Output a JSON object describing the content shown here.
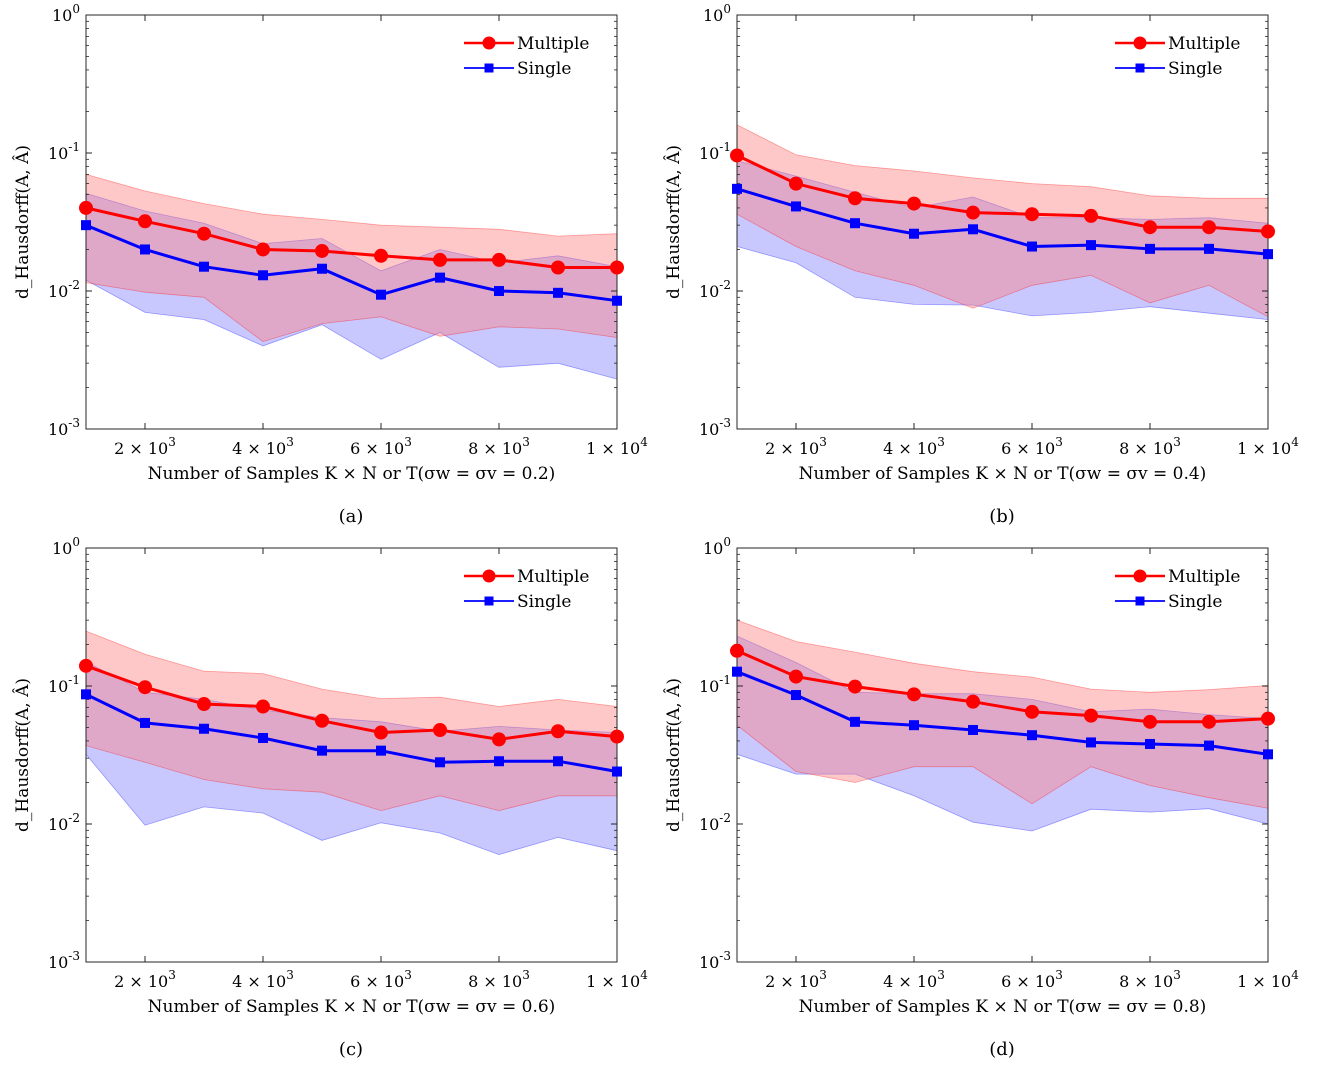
{
  "figure": {
    "colors": {
      "multiple": "#ff0000",
      "single": "#0000ff",
      "multiple_band": "#ff7b7b",
      "single_band": "#7b7bff"
    }
  },
  "chart_data": [
    {
      "panel": "(a)",
      "type": "line",
      "scale": "log-y",
      "xlabel": "Number of Samples K × N or T(σw = σv = 0.2)",
      "ylabel": "d_Hausdorff(A, Â)",
      "xlim": [
        1000,
        10000
      ],
      "ylim": [
        0.001,
        1
      ],
      "x_ticks": [
        2000,
        4000,
        6000,
        8000,
        10000
      ],
      "x_tick_labels": [
        "2 × 10^3",
        "4 × 10^3",
        "6 × 10^3",
        "8 × 10^3",
        "1 × 10^4"
      ],
      "y_ticks": [
        0.001,
        0.01,
        0.1,
        1
      ],
      "y_tick_labels": [
        "10^-3",
        "10^-2",
        "10^-1",
        "10^0"
      ],
      "legend_position": "top-right",
      "x": [
        1000,
        2000,
        3000,
        4000,
        5000,
        6000,
        7000,
        8000,
        9000,
        10000
      ],
      "series": [
        {
          "name": "Multiple",
          "marker": "circle",
          "values": [
            0.04,
            0.032,
            0.026,
            0.02,
            0.0195,
            0.018,
            0.0168,
            0.0168,
            0.0148,
            0.0148
          ],
          "upper": [
            0.07,
            0.053,
            0.043,
            0.036,
            0.033,
            0.03,
            0.029,
            0.028,
            0.025,
            0.026
          ],
          "lower": [
            0.0115,
            0.0098,
            0.009,
            0.0043,
            0.0058,
            0.0065,
            0.0047,
            0.0055,
            0.0053,
            0.0046
          ]
        },
        {
          "name": "Single",
          "marker": "square",
          "values": [
            0.03,
            0.02,
            0.015,
            0.013,
            0.0145,
            0.0094,
            0.0125,
            0.01,
            0.0097,
            0.0085
          ],
          "upper": [
            0.051,
            0.038,
            0.031,
            0.022,
            0.024,
            0.014,
            0.02,
            0.016,
            0.018,
            0.015
          ],
          "lower": [
            0.012,
            0.007,
            0.0062,
            0.004,
            0.0057,
            0.0032,
            0.005,
            0.0028,
            0.003,
            0.0023
          ]
        }
      ]
    },
    {
      "panel": "(b)",
      "type": "line",
      "scale": "log-y",
      "xlabel": "Number of Samples K × N or T(σw = σv = 0.4)",
      "ylabel": "d_Hausdorff(A, Â)",
      "xlim": [
        1000,
        10000
      ],
      "ylim": [
        0.001,
        1
      ],
      "x_ticks": [
        2000,
        4000,
        6000,
        8000,
        10000
      ],
      "x_tick_labels": [
        "2 × 10^3",
        "4 × 10^3",
        "6 × 10^3",
        "8 × 10^3",
        "1 × 10^4"
      ],
      "y_ticks": [
        0.001,
        0.01,
        0.1,
        1
      ],
      "y_tick_labels": [
        "10^-3",
        "10^-2",
        "10^-1",
        "10^0"
      ],
      "legend_position": "top-right",
      "x": [
        1000,
        2000,
        3000,
        4000,
        5000,
        6000,
        7000,
        8000,
        9000,
        10000
      ],
      "series": [
        {
          "name": "Multiple",
          "marker": "circle",
          "values": [
            0.096,
            0.06,
            0.047,
            0.043,
            0.037,
            0.036,
            0.035,
            0.029,
            0.029,
            0.027
          ],
          "upper": [
            0.16,
            0.097,
            0.081,
            0.074,
            0.066,
            0.06,
            0.057,
            0.049,
            0.047,
            0.047
          ],
          "lower": [
            0.036,
            0.021,
            0.014,
            0.011,
            0.0075,
            0.011,
            0.013,
            0.0082,
            0.011,
            0.0065
          ]
        },
        {
          "name": "Single",
          "marker": "square",
          "values": [
            0.055,
            0.041,
            0.031,
            0.026,
            0.028,
            0.021,
            0.0215,
            0.0202,
            0.0202,
            0.0185
          ],
          "upper": [
            0.088,
            0.068,
            0.052,
            0.04,
            0.048,
            0.034,
            0.034,
            0.033,
            0.034,
            0.031
          ],
          "lower": [
            0.021,
            0.016,
            0.009,
            0.008,
            0.0079,
            0.0066,
            0.007,
            0.0077,
            0.0069,
            0.0062
          ]
        }
      ]
    },
    {
      "panel": "(c)",
      "type": "line",
      "scale": "log-y",
      "xlabel": "Number of Samples K × N or T(σw = σv = 0.6)",
      "ylabel": "d_Hausdorff(A, Â)",
      "xlim": [
        1000,
        10000
      ],
      "ylim": [
        0.001,
        1
      ],
      "x_ticks": [
        2000,
        4000,
        6000,
        8000,
        10000
      ],
      "x_tick_labels": [
        "2 × 10^3",
        "4 × 10^3",
        "6 × 10^3",
        "8 × 10^3",
        "1 × 10^4"
      ],
      "y_ticks": [
        0.001,
        0.01,
        0.1,
        1
      ],
      "y_tick_labels": [
        "10^-3",
        "10^-2",
        "10^-1",
        "10^0"
      ],
      "legend_position": "top-right",
      "x": [
        1000,
        2000,
        3000,
        4000,
        5000,
        6000,
        7000,
        8000,
        9000,
        10000
      ],
      "series": [
        {
          "name": "Multiple",
          "marker": "circle",
          "values": [
            0.14,
            0.098,
            0.074,
            0.071,
            0.056,
            0.046,
            0.048,
            0.041,
            0.047,
            0.043
          ],
          "upper": [
            0.25,
            0.17,
            0.128,
            0.123,
            0.095,
            0.081,
            0.083,
            0.071,
            0.08,
            0.071
          ],
          "lower": [
            0.037,
            0.028,
            0.021,
            0.018,
            0.017,
            0.0125,
            0.016,
            0.0125,
            0.016,
            0.016
          ]
        },
        {
          "name": "Single",
          "marker": "square",
          "values": [
            0.087,
            0.054,
            0.049,
            0.042,
            0.034,
            0.034,
            0.028,
            0.0285,
            0.0285,
            0.024
          ],
          "upper": [
            0.15,
            0.09,
            0.08,
            0.067,
            0.059,
            0.055,
            0.047,
            0.051,
            0.048,
            0.046
          ],
          "lower": [
            0.032,
            0.0098,
            0.0133,
            0.012,
            0.0076,
            0.0102,
            0.0086,
            0.006,
            0.008,
            0.0064
          ]
        }
      ]
    },
    {
      "panel": "(d)",
      "type": "line",
      "scale": "log-y",
      "xlabel": "Number of Samples K × N or T(σw = σv = 0.8)",
      "ylabel": "d_Hausdorff(A, Â)",
      "xlim": [
        1000,
        10000
      ],
      "ylim": [
        0.001,
        1
      ],
      "x_ticks": [
        2000,
        4000,
        6000,
        8000,
        10000
      ],
      "x_tick_labels": [
        "2 × 10^3",
        "4 × 10^3",
        "6 × 10^3",
        "8 × 10^3",
        "1 × 10^4"
      ],
      "y_ticks": [
        0.001,
        0.01,
        0.1,
        1
      ],
      "y_tick_labels": [
        "10^-3",
        "10^-2",
        "10^-1",
        "10^0"
      ],
      "legend_position": "top-right",
      "x": [
        1000,
        2000,
        3000,
        4000,
        5000,
        6000,
        7000,
        8000,
        9000,
        10000
      ],
      "series": [
        {
          "name": "Multiple",
          "marker": "circle",
          "values": [
            0.18,
            0.117,
            0.099,
            0.087,
            0.077,
            0.065,
            0.061,
            0.055,
            0.055,
            0.058
          ],
          "upper": [
            0.3,
            0.21,
            0.176,
            0.146,
            0.127,
            0.116,
            0.095,
            0.09,
            0.094,
            0.101
          ],
          "lower": [
            0.052,
            0.024,
            0.02,
            0.026,
            0.026,
            0.014,
            0.026,
            0.019,
            0.0155,
            0.013
          ]
        },
        {
          "name": "Single",
          "marker": "square",
          "values": [
            0.127,
            0.086,
            0.055,
            0.052,
            0.048,
            0.044,
            0.039,
            0.038,
            0.037,
            0.032
          ],
          "upper": [
            0.23,
            0.148,
            0.09,
            0.088,
            0.088,
            0.08,
            0.065,
            0.068,
            0.062,
            0.058
          ],
          "lower": [
            0.032,
            0.023,
            0.023,
            0.016,
            0.0103,
            0.0089,
            0.0128,
            0.0122,
            0.0129,
            0.01
          ]
        }
      ]
    }
  ]
}
